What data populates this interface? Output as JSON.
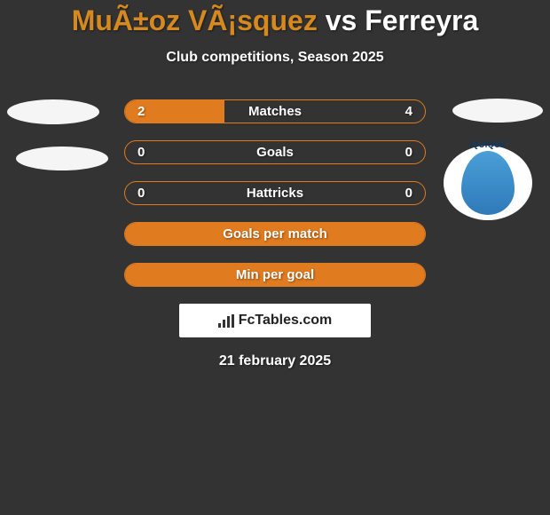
{
  "title": {
    "player1_color": "#d6891f",
    "player1": "MuÃ±oz VÃ¡squez",
    "vs": " vs ",
    "player2_color": "#ffffff",
    "player2": "Ferreyra"
  },
  "subtitle": "Club competitions, Season 2025",
  "bars": [
    {
      "label": "Matches",
      "left": "2",
      "right": "4",
      "fill_left_pct": 33,
      "border_color": "#e07b1f",
      "fill_color": "#e07b1f"
    },
    {
      "label": "Goals",
      "left": "0",
      "right": "0",
      "fill_left_pct": 0,
      "border_color": "#e07b1f",
      "fill_color": "#e07b1f"
    },
    {
      "label": "Hattricks",
      "left": "0",
      "right": "0",
      "fill_left_pct": 0,
      "border_color": "#e07b1f",
      "fill_color": "#e07b1f"
    },
    {
      "label": "Goals per match",
      "left": "",
      "right": "",
      "fill_left_pct": 100,
      "border_color": "#e07b1f",
      "fill_color": "#e07b1f"
    },
    {
      "label": "Min per goal",
      "left": "",
      "right": "",
      "fill_left_pct": 100,
      "border_color": "#e07b1f",
      "fill_color": "#e07b1f"
    }
  ],
  "club_logo": {
    "text": "IQUIQUE",
    "bg_color": "#ffffff",
    "shield_gradient_top": "#4a9fd8",
    "shield_gradient_bottom": "#2e7ab8",
    "text_color": "#0a3a6a"
  },
  "attribution": "FcTables.com",
  "date": "21 february 2025",
  "colors": {
    "page_bg": "#333333",
    "text": "#ffffff",
    "accent": "#e07b1f"
  }
}
